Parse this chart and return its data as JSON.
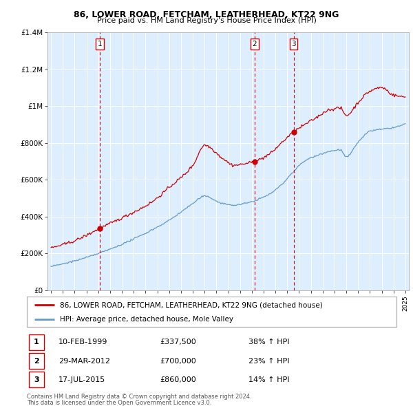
{
  "title1": "86, LOWER ROAD, FETCHAM, LEATHERHEAD, KT22 9NG",
  "title2": "Price paid vs. HM Land Registry's House Price Index (HPI)",
  "legend_line1": "86, LOWER ROAD, FETCHAM, LEATHERHEAD, KT22 9NG (detached house)",
  "legend_line2": "HPI: Average price, detached house, Mole Valley",
  "footer1": "Contains HM Land Registry data © Crown copyright and database right 2024.",
  "footer2": "This data is licensed under the Open Government Licence v3.0.",
  "sales": [
    {
      "num": 1,
      "date": "10-FEB-1999",
      "price": "£337,500",
      "pct": "38% ↑ HPI",
      "year": 1999.11
    },
    {
      "num": 2,
      "date": "29-MAR-2012",
      "price": "£700,000",
      "pct": "23% ↑ HPI",
      "year": 2012.24
    },
    {
      "num": 3,
      "date": "17-JUL-2015",
      "price": "£860,000",
      "pct": "14% ↑ HPI",
      "year": 2015.54
    }
  ],
  "sale_prices": [
    337500,
    700000,
    860000
  ],
  "sale_years": [
    1999.11,
    2012.24,
    2015.54
  ],
  "red_color": "#cc0000",
  "blue_color": "#6699cc",
  "background_color": "#ddeeff",
  "grid_color": "#ffffff",
  "ylim": [
    0,
    1400000
  ],
  "xlim_start": 1994.7,
  "xlim_end": 2025.3
}
